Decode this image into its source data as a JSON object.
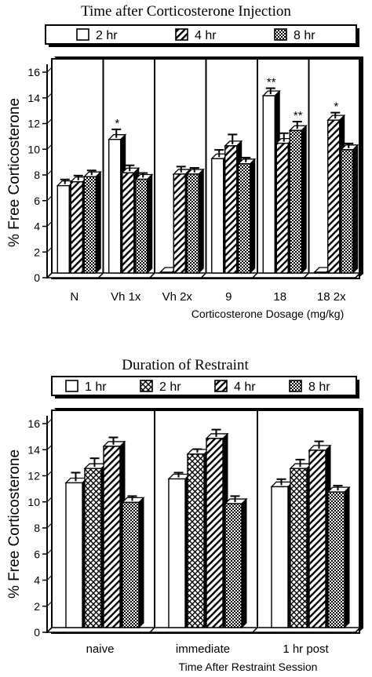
{
  "chart_data": [
    {
      "type": "bar",
      "title": "Time after Corticosterone Injection",
      "xlabel": "Corticosterone Dosage (mg/kg)",
      "ylabel": "% Free Corticosterone",
      "ylim": [
        0,
        16
      ],
      "yticks": [
        0,
        2,
        4,
        6,
        8,
        10,
        12,
        14,
        16
      ],
      "legend_position": "top",
      "categories": [
        "N",
        "Vh 1x",
        "Vh 2x",
        "9",
        "18",
        "18 2x"
      ],
      "series": [
        {
          "name": "2 hr",
          "pattern": "white",
          "values": [
            6.8,
            10.4,
            null,
            8.9,
            13.8,
            null
          ],
          "errors": [
            0.3,
            0.6,
            null,
            0.5,
            0.4,
            null
          ]
        },
        {
          "name": "4 hr",
          "pattern": "diagonal",
          "values": [
            7.1,
            7.8,
            7.7,
            9.9,
            10.1,
            11.9
          ],
          "errors": [
            0.3,
            0.4,
            0.4,
            0.7,
            0.6,
            0.4
          ]
        },
        {
          "name": "8 hr",
          "pattern": "checker",
          "values": [
            7.5,
            7.3,
            7.7,
            8.5,
            11.1,
            9.6
          ],
          "errors": [
            0.3,
            0.3,
            0.3,
            0.3,
            0.5,
            0.3
          ]
        }
      ],
      "annotations": [
        {
          "text": "*",
          "category": "Vh 1x",
          "series": "2 hr"
        },
        {
          "text": "**",
          "category": "18",
          "series": "2 hr"
        },
        {
          "text": "**",
          "category": "18",
          "series": "8 hr"
        },
        {
          "text": "*",
          "category": "18 2x",
          "series": "4 hr"
        }
      ]
    },
    {
      "type": "bar",
      "title": "Duration of Restraint",
      "xlabel": "Time After Restraint Session",
      "ylabel": "% Free Corticosterone",
      "ylim": [
        0,
        16
      ],
      "yticks": [
        0,
        2,
        4,
        6,
        8,
        10,
        12,
        14,
        16
      ],
      "legend_position": "top",
      "categories": [
        "naive",
        "immediate",
        "1 hr post"
      ],
      "series": [
        {
          "name": "1 hr",
          "pattern": "white",
          "values": [
            11.1,
            11.4,
            10.8
          ],
          "errors": [
            0.6,
            0.3,
            0.4
          ]
        },
        {
          "name": "2 hr",
          "pattern": "crosshatch",
          "values": [
            12.2,
            13.3,
            12.2
          ],
          "errors": [
            0.6,
            0.2,
            0.5
          ]
        },
        {
          "name": "4 hr",
          "pattern": "diagonal",
          "values": [
            13.9,
            14.5,
            13.6
          ],
          "errors": [
            0.5,
            0.5,
            0.5
          ]
        },
        {
          "name": "8 hr",
          "pattern": "checker",
          "values": [
            9.6,
            9.5,
            10.4
          ],
          "errors": [
            0.3,
            0.4,
            0.3
          ]
        }
      ],
      "annotations": []
    }
  ]
}
